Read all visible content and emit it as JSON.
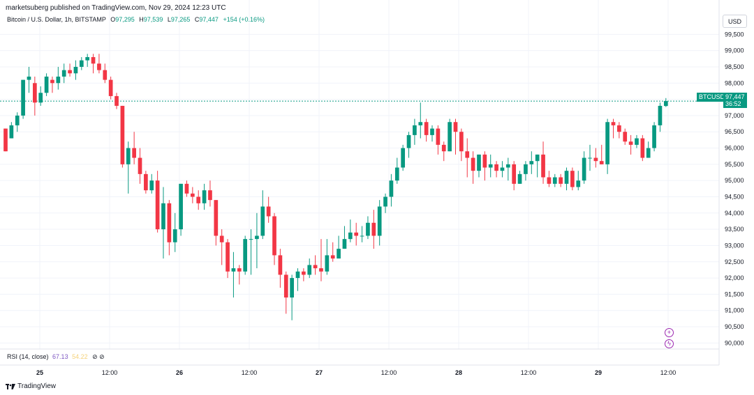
{
  "publisher": "marketsuberg published on TradingView.com, Nov 29, 2024 12:23 UTC",
  "legend": {
    "symbol": "Bitcoin / U.S. Dollar, 1h, BITSTAMP",
    "o_label": "O",
    "o": "97,295",
    "h_label": "H",
    "h": "97,539",
    "l_label": "L",
    "l": "97,265",
    "c_label": "C",
    "c": "97,447",
    "change": "+154 (+0.16%)"
  },
  "currency": "USD",
  "last_price": {
    "ticker": "BTCUSD",
    "price": "97,447",
    "countdown": "36:52"
  },
  "rsi": {
    "label": "RSI (14, close)",
    "value1": "67.13",
    "value2": "54.22",
    "icons": "⊘ ⊘"
  },
  "footer_logo": "TradingView",
  "colors": {
    "up": "#089981",
    "down": "#f23645",
    "grid": "#f0f3fa",
    "last_line": "#089981"
  },
  "chart_data": {
    "type": "candlestick",
    "y_ticks": [
      "99,500",
      "99,000",
      "98,500",
      "98,000",
      "97,500",
      "97,000",
      "96,500",
      "96,000",
      "95,500",
      "95,000",
      "94,500",
      "94,000",
      "93,500",
      "93,000",
      "92,500",
      "92,000",
      "91,500",
      "91,000",
      "90,500",
      "90,000"
    ],
    "x_ticks": [
      "25",
      "12:00",
      "26",
      "12:00",
      "27",
      "12:00",
      "28",
      "12:00",
      "29",
      "12:00"
    ],
    "ylim": [
      89900,
      99700
    ],
    "last_value": 97447,
    "candles": [
      [
        96600,
        95900,
        96600,
        95900
      ],
      [
        96300,
        96700,
        96800,
        96300
      ],
      [
        96700,
        97000,
        97100,
        96500
      ],
      [
        97000,
        98100,
        98100,
        96900
      ],
      [
        98100,
        98200,
        98500,
        97700
      ],
      [
        98000,
        97400,
        98200,
        97000
      ],
      [
        97400,
        97700,
        97900,
        97300
      ],
      [
        97700,
        98200,
        98300,
        97600
      ],
      [
        98100,
        98000,
        98200,
        97700
      ],
      [
        98000,
        98200,
        98500,
        97800
      ],
      [
        98200,
        98400,
        98600,
        98000
      ],
      [
        98400,
        98300,
        98600,
        98200
      ],
      [
        98300,
        98500,
        98700,
        98100
      ],
      [
        98500,
        98700,
        98800,
        98400
      ],
      [
        98700,
        98800,
        98900,
        98500
      ],
      [
        98800,
        98600,
        98900,
        98300
      ],
      [
        98600,
        98400,
        98900,
        98300
      ],
      [
        98400,
        98100,
        98600,
        98000
      ],
      [
        98100,
        97600,
        98200,
        97500
      ],
      [
        97600,
        97300,
        97700,
        97200
      ],
      [
        97300,
        95500,
        97300,
        95400
      ],
      [
        95500,
        96000,
        96200,
        94600
      ],
      [
        96000,
        95700,
        96500,
        95500
      ],
      [
        95700,
        95200,
        96000,
        94900
      ],
      [
        95200,
        94700,
        95300,
        94600
      ],
      [
        94700,
        95000,
        95200,
        94600
      ],
      [
        95000,
        93500,
        95300,
        93400
      ],
      [
        93500,
        94300,
        94800,
        92600
      ],
      [
        94300,
        93100,
        94400,
        92700
      ],
      [
        93100,
        93500,
        94000,
        92800
      ],
      [
        93500,
        94900,
        94900,
        93300
      ],
      [
        94900,
        94600,
        95000,
        94500
      ],
      [
        94600,
        94500,
        94800,
        94300
      ],
      [
        94500,
        94300,
        94700,
        94100
      ],
      [
        94300,
        94700,
        94900,
        94100
      ],
      [
        94700,
        94400,
        95000,
        94200
      ],
      [
        94400,
        93300,
        94400,
        93000
      ],
      [
        93300,
        93100,
        93500,
        92400
      ],
      [
        93100,
        92200,
        93200,
        92000
      ],
      [
        92200,
        92300,
        92800,
        91400
      ],
      [
        92300,
        92200,
        92400,
        91800
      ],
      [
        92200,
        93200,
        93300,
        92100
      ],
      [
        93200,
        93200,
        93500,
        92100
      ],
      [
        93200,
        93300,
        94000,
        92300
      ],
      [
        93300,
        94200,
        94700,
        93200
      ],
      [
        94200,
        93900,
        94500,
        93700
      ],
      [
        93900,
        92700,
        94000,
        92400
      ],
      [
        92700,
        92100,
        92900,
        91700
      ],
      [
        92100,
        91400,
        92200,
        90900
      ],
      [
        91400,
        92000,
        92100,
        90700
      ],
      [
        92000,
        92200,
        92300,
        91600
      ],
      [
        92200,
        92100,
        92300,
        91900
      ],
      [
        92100,
        92400,
        92600,
        92000
      ],
      [
        92400,
        92300,
        92700,
        92100
      ],
      [
        92300,
        92200,
        93200,
        91900
      ],
      [
        92200,
        92700,
        93200,
        92100
      ],
      [
        92700,
        92600,
        93100,
        92500
      ],
      [
        92600,
        92900,
        93300,
        92700
      ],
      [
        92900,
        93200,
        93600,
        92900
      ],
      [
        93200,
        93400,
        93800,
        93100
      ],
      [
        93400,
        93300,
        93700,
        93000
      ],
      [
        93300,
        93300,
        93600,
        93100
      ],
      [
        93300,
        93700,
        93900,
        93200
      ],
      [
        93700,
        93300,
        94100,
        92900
      ],
      [
        93300,
        94200,
        94400,
        93000
      ],
      [
        94200,
        94500,
        94600,
        94000
      ],
      [
        94500,
        95000,
        95200,
        94200
      ],
      [
        95000,
        95400,
        95700,
        94900
      ],
      [
        95400,
        96000,
        96100,
        95300
      ],
      [
        96000,
        96400,
        96500,
        95700
      ],
      [
        96400,
        96700,
        96900,
        96100
      ],
      [
        96700,
        96800,
        97400,
        96300
      ],
      [
        96800,
        96400,
        96900,
        96200
      ],
      [
        96400,
        96600,
        96700,
        96200
      ],
      [
        96600,
        96100,
        96700,
        95800
      ],
      [
        96100,
        95900,
        96200,
        95600
      ],
      [
        95900,
        96800,
        96900,
        95900
      ],
      [
        96800,
        96500,
        96900,
        95800
      ],
      [
        96500,
        95900,
        96600,
        95600
      ],
      [
        95900,
        95700,
        96300,
        95100
      ],
      [
        95700,
        95300,
        95900,
        94900
      ],
      [
        95300,
        95800,
        95800,
        95100
      ],
      [
        95800,
        95400,
        95900,
        95000
      ],
      [
        95400,
        95500,
        95800,
        95100
      ],
      [
        95500,
        95300,
        95600,
        95100
      ],
      [
        95300,
        95400,
        95600,
        95100
      ],
      [
        95400,
        95500,
        95700,
        95000
      ],
      [
        95500,
        94900,
        95600,
        94700
      ],
      [
        94900,
        95200,
        95300,
        94900
      ],
      [
        95200,
        95500,
        95600,
        95000
      ],
      [
        95500,
        95600,
        95900,
        95200
      ],
      [
        95600,
        95800,
        95800,
        95100
      ],
      [
        95800,
        95100,
        96200,
        94900
      ],
      [
        95100,
        94900,
        95300,
        94800
      ],
      [
        94900,
        95100,
        95200,
        94800
      ],
      [
        95100,
        94900,
        95200,
        94800
      ],
      [
        94900,
        95300,
        95400,
        94700
      ],
      [
        95300,
        94800,
        95400,
        94700
      ],
      [
        94800,
        95000,
        95300,
        94700
      ],
      [
        95000,
        95700,
        95900,
        94900
      ],
      [
        95700,
        95700,
        96100,
        95300
      ],
      [
        95700,
        95600,
        96000,
        95400
      ],
      [
        95600,
        95500,
        96100,
        95500
      ],
      [
        95500,
        96800,
        96900,
        95200
      ],
      [
        96800,
        96700,
        96900,
        96300
      ],
      [
        96700,
        96500,
        96800,
        96300
      ],
      [
        96500,
        96200,
        96600,
        96100
      ],
      [
        96200,
        96100,
        96400,
        95800
      ],
      [
        96100,
        96300,
        96400,
        96000
      ],
      [
        96300,
        95700,
        96400,
        95600
      ],
      [
        95700,
        96000,
        96200,
        95700
      ],
      [
        96000,
        96700,
        96800,
        95900
      ],
      [
        96700,
        97300,
        97400,
        96500
      ],
      [
        97295,
        97447,
        97539,
        97265
      ]
    ]
  }
}
